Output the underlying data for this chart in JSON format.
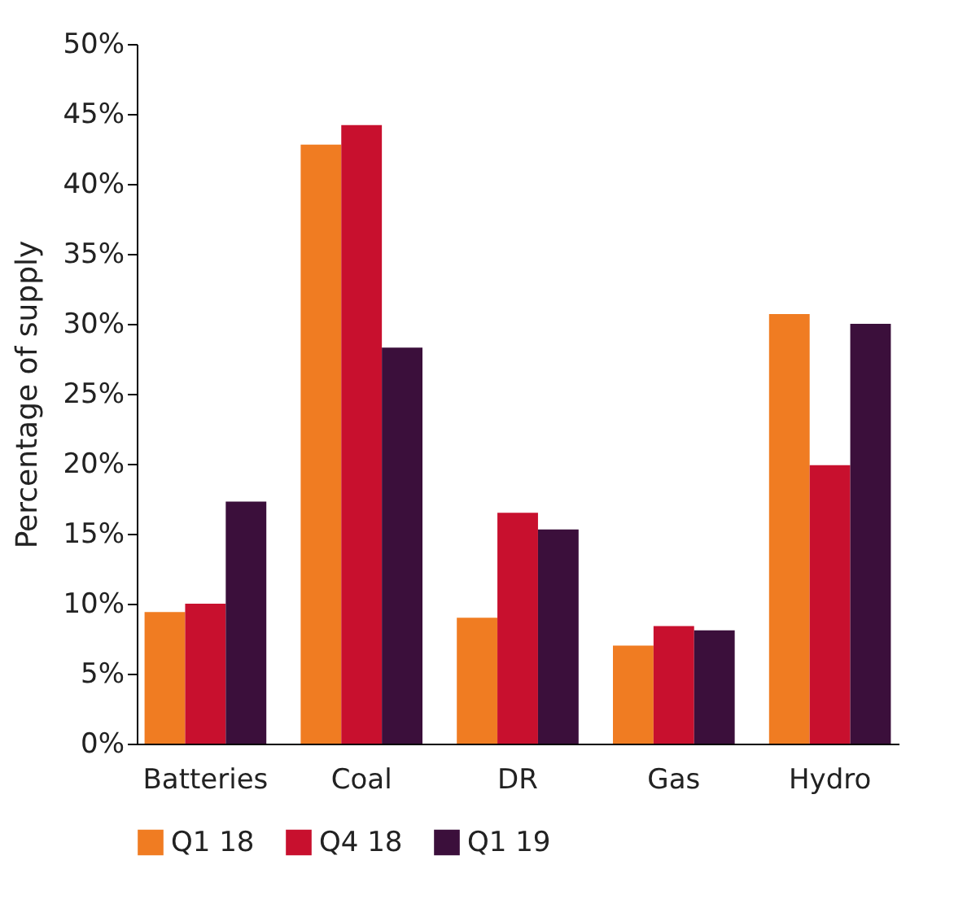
{
  "chart_data": {
    "type": "bar",
    "ylabel": "Percentage of supply",
    "categories": [
      "Batteries",
      "Coal",
      "DR",
      "Gas",
      "Hydro"
    ],
    "series": [
      {
        "name": "Q1 18",
        "color": "#f07c22",
        "values": [
          9.4,
          42.8,
          9.0,
          7.0,
          30.7
        ]
      },
      {
        "name": "Q4 18",
        "color": "#c8102e",
        "values": [
          10.0,
          44.2,
          16.5,
          8.4,
          19.9
        ]
      },
      {
        "name": "Q1 19",
        "color": "#3b0f3b",
        "values": [
          17.3,
          28.3,
          15.3,
          8.1,
          30.0
        ]
      }
    ],
    "ylim": [
      0,
      50
    ],
    "yticks": [
      {
        "value": 0,
        "label": "0%"
      },
      {
        "value": 5,
        "label": "5%"
      },
      {
        "value": 10,
        "label": "10%"
      },
      {
        "value": 15,
        "label": "15%"
      },
      {
        "value": 20,
        "label": "20%"
      },
      {
        "value": 25,
        "label": "25%"
      },
      {
        "value": 30,
        "label": "30%"
      },
      {
        "value": 35,
        "label": "35%"
      },
      {
        "value": 40,
        "label": "40%"
      },
      {
        "value": 45,
        "label": "45%"
      },
      {
        "value": 50,
        "label": "50%"
      }
    ],
    "grid": false,
    "legend": "bottom"
  }
}
